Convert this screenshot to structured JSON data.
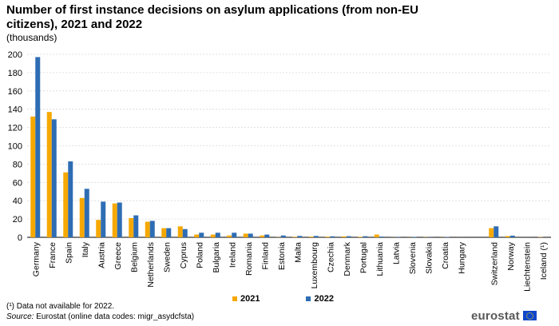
{
  "header": {
    "title": "Number of first instance decisions on asylum applications (from non-EU citizens), 2021 and 2022",
    "subtitle": "(thousands)"
  },
  "footer": {
    "footnote": "(¹) Data not available for 2022.",
    "source_label": "Source:",
    "source_text": " Eurostat (online data codes: migr_asydcfsta)",
    "logo_text": "eurostat"
  },
  "colors": {
    "s2021": "#F6A800",
    "s2022": "#2E6DB4"
  },
  "chart_data": {
    "type": "bar",
    "categories": [
      "Germany",
      "France",
      "Spain",
      "Italy",
      "Austria",
      "Greece",
      "Belgium",
      "Netherlands",
      "Sweden",
      "Cyprus",
      "Poland",
      "Bulgaria",
      "Ireland",
      "Romania",
      "Finland",
      "Estonia",
      "Malta",
      "Luxembourg",
      "Czechia",
      "Denmark",
      "Portugal",
      "Lithuania",
      "Latvia",
      "Slovenia",
      "Slovakia",
      "Croatia",
      "Hungary",
      "",
      "Switzerland",
      "Norway",
      "Liechtenstein",
      "Iceland (¹)"
    ],
    "series": [
      {
        "name": "2021",
        "color": "#F6A800",
        "values": [
          132,
          137,
          71,
          43,
          19,
          37,
          21,
          17,
          10,
          12,
          3,
          3,
          2,
          4,
          2,
          0.2,
          0.6,
          0.8,
          0.7,
          1.0,
          0.6,
          3.0,
          0.1,
          0.1,
          0.2,
          0.1,
          0.05,
          null,
          10,
          1.3,
          0.03,
          0.3
        ]
      },
      {
        "name": "2022",
        "color": "#2E6DB4",
        "values": [
          197,
          129,
          83,
          53,
          39,
          38,
          24,
          18,
          10,
          9,
          5,
          5,
          5,
          4,
          3,
          2,
          1.5,
          1.5,
          1.1,
          1.2,
          1.2,
          0.8,
          0.3,
          0.5,
          0.2,
          0.4,
          0.05,
          null,
          12,
          1.8,
          0.05,
          null
        ]
      }
    ],
    "yticks": [
      0,
      20,
      40,
      60,
      80,
      100,
      120,
      140,
      160,
      180,
      200
    ],
    "ylim": [
      0,
      200
    ],
    "grid": true,
    "legend": "bottom-center"
  }
}
